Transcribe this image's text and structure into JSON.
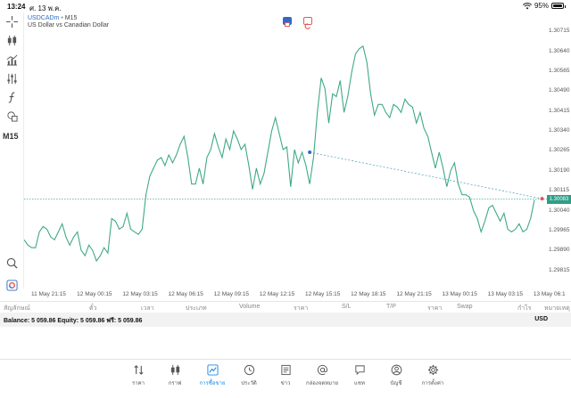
{
  "status_bar": {
    "time": "13:24",
    "date": "ศ. 13 พ.ค.",
    "battery": "95%",
    "battery_level": 0.95
  },
  "toolbar": {
    "timeframe": "M15",
    "tools": [
      "crosshair-icon",
      "candles-icon",
      "indicators-icon",
      "settings-sliders-icon",
      "function-icon",
      "objects-icon"
    ],
    "bottom_tools": [
      "zoom-icon",
      "trading-app-icon"
    ]
  },
  "chart": {
    "symbol": "USDCADm",
    "separator": "•",
    "timeframe_label": "M15",
    "description": "US Dollar vs Canadian Dollar",
    "current_price": "1.30083",
    "colors": {
      "line": "#3fa987",
      "price_line": "#3aa48d",
      "trend": "#5ba8bd",
      "accent_red": "#e25a5a",
      "accent_blue": "#2f6bc6"
    }
  },
  "chart_data": {
    "type": "line",
    "title": "USDCADm, M15",
    "subtitle": "US Dollar vs Canadian Dollar",
    "ylim": [
      1.2978,
      1.3076
    ],
    "y_ticks": [
      "1.30715",
      "1.30640",
      "1.30565",
      "1.30490",
      "1.30415",
      "1.30340",
      "1.30265",
      "1.30190",
      "1.30115",
      "1.30040",
      "1.29965",
      "1.29890",
      "1.29815"
    ],
    "x_ticks": [
      "11 May 21:15",
      "12 May 00:15",
      "12 May 03:15",
      "12 May 06:15",
      "12 May 09:15",
      "12 May 12:15",
      "12 May 15:15",
      "12 May 18:15",
      "12 May 21:15",
      "13 May 00:15",
      "13 May 03:15",
      "13 May 06:1"
    ],
    "current_price": 1.30083,
    "series": [
      {
        "name": "Close",
        "values": [
          1.2993,
          1.2991,
          1.299,
          1.299,
          1.2996,
          1.2998,
          1.2997,
          1.2994,
          1.2993,
          1.2996,
          1.2999,
          1.2994,
          1.2991,
          1.2994,
          1.2996,
          1.2989,
          1.2987,
          1.2991,
          1.2989,
          1.2985,
          1.2987,
          1.299,
          1.2988,
          1.3001,
          1.3,
          1.2997,
          1.2998,
          1.3003,
          1.2997,
          1.2996,
          1.2995,
          1.2997,
          1.301,
          1.3017,
          1.302,
          1.3023,
          1.3024,
          1.3021,
          1.3025,
          1.3022,
          1.3025,
          1.3029,
          1.3032,
          1.3024,
          1.3014,
          1.3014,
          1.302,
          1.3014,
          1.3024,
          1.3027,
          1.3033,
          1.3028,
          1.3024,
          1.3031,
          1.3027,
          1.3034,
          1.3031,
          1.3027,
          1.3029,
          1.3021,
          1.3012,
          1.302,
          1.3014,
          1.3018,
          1.3026,
          1.3034,
          1.3039,
          1.3033,
          1.3027,
          1.3028,
          1.3013,
          1.3027,
          1.3022,
          1.3026,
          1.3021,
          1.3014,
          1.3024,
          1.3041,
          1.3054,
          1.305,
          1.3037,
          1.3048,
          1.3047,
          1.3053,
          1.3041,
          1.3047,
          1.3056,
          1.3063,
          1.3065,
          1.3066,
          1.306,
          1.3048,
          1.304,
          1.3044,
          1.3044,
          1.3041,
          1.3039,
          1.3044,
          1.3043,
          1.3041,
          1.3046,
          1.3044,
          1.3043,
          1.3037,
          1.3041,
          1.3035,
          1.3032,
          1.3026,
          1.302,
          1.3026,
          1.302,
          1.3013,
          1.3019,
          1.3022,
          1.3014,
          1.301,
          1.301,
          1.3009,
          1.3004,
          1.3001,
          1.2996,
          1.3,
          1.3005,
          1.3006,
          1.3003,
          1.3,
          1.3003,
          1.2997,
          1.2996,
          1.2997,
          1.2999,
          1.2996,
          1.2997,
          1.3001,
          1.3008
        ]
      }
    ],
    "trend_line": {
      "start_index": 75,
      "start_value": 1.3026,
      "end_index": 136,
      "end_value": 1.30085
    }
  },
  "trades_header": {
    "columns": [
      "สัญลักษณ์",
      "ตั๋ว",
      "เวลา",
      "ประเภท",
      "Volume",
      "ราคา",
      "S/L",
      "T/P",
      "ราคา",
      "Swap",
      "กำไร",
      "หมายเหตุ"
    ]
  },
  "balance_bar": {
    "text": "Balance: 5 059.86 Equity: 5 059.86 ฟรี: 5 059.86",
    "currency": "USD"
  },
  "bottom_nav": {
    "items": [
      {
        "label": "ราคา",
        "icon": "quotes-icon"
      },
      {
        "label": "กราฟ",
        "icon": "charts-icon"
      },
      {
        "label": "การซื้อขาย",
        "icon": "trade-icon"
      },
      {
        "label": "ประวัติ",
        "icon": "history-icon"
      },
      {
        "label": "ข่าว",
        "icon": "news-icon"
      },
      {
        "label": "กล่องจดหมาย",
        "icon": "mailbox-icon"
      },
      {
        "label": "แชท",
        "icon": "chat-icon"
      },
      {
        "label": "บัญชี",
        "icon": "account-icon"
      },
      {
        "label": "การตั้งค่า",
        "icon": "settings-icon"
      }
    ]
  }
}
